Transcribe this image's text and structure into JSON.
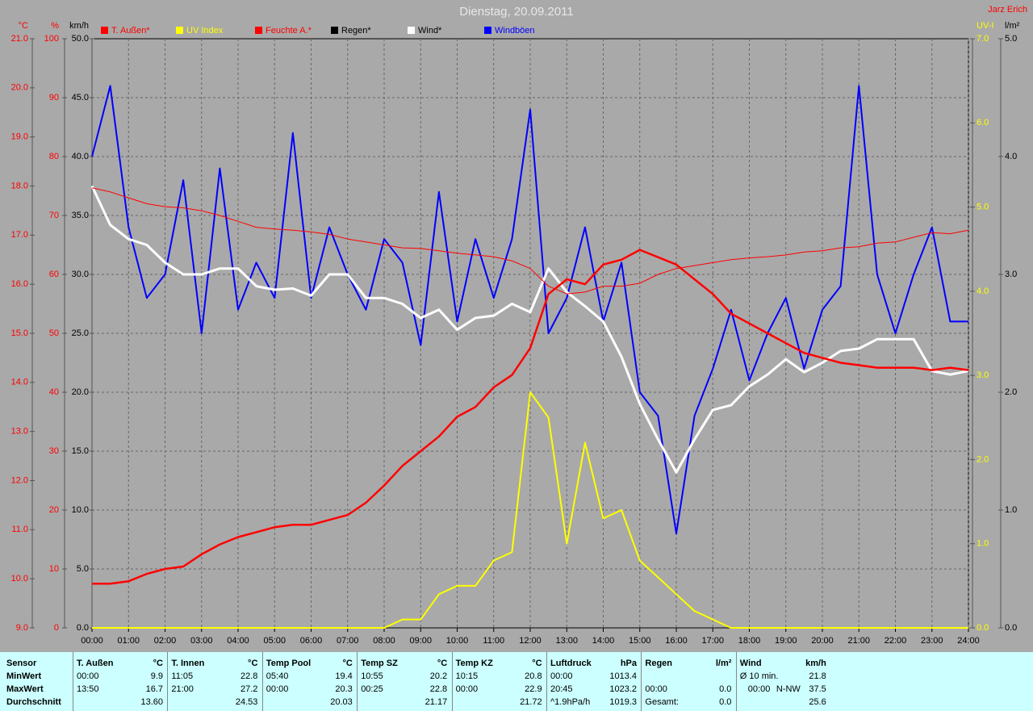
{
  "title": "Dienstag, 20.09.2011",
  "author": "Jarz Erich",
  "chart_data": {
    "type": "line",
    "x": [
      0,
      0.5,
      1,
      1.5,
      2,
      2.5,
      3,
      3.5,
      4,
      4.5,
      5,
      5.5,
      6,
      6.5,
      7,
      7.5,
      8,
      8.5,
      9,
      9.5,
      10,
      10.5,
      11,
      11.5,
      12,
      12.5,
      13,
      13.5,
      14,
      14.5,
      15,
      15.5,
      16,
      16.5,
      17,
      17.5,
      18,
      18.5,
      19,
      19.5,
      20,
      20.5,
      21,
      21.5,
      22,
      22.5,
      23,
      23.5,
      24
    ],
    "xlim": [
      0,
      24
    ],
    "xticks": [
      {
        "value": 0,
        "label": "00:00"
      },
      {
        "value": 1,
        "label": "01:00"
      },
      {
        "value": 2,
        "label": "02:00"
      },
      {
        "value": 3,
        "label": "03:00"
      },
      {
        "value": 4,
        "label": "04:00"
      },
      {
        "value": 5,
        "label": "05:00"
      },
      {
        "value": 6,
        "label": "06:00"
      },
      {
        "value": 7,
        "label": "07:00"
      },
      {
        "value": 8,
        "label": "08:00"
      },
      {
        "value": 9,
        "label": "09:00"
      },
      {
        "value": 10,
        "label": "10:00"
      },
      {
        "value": 11,
        "label": "11:00"
      },
      {
        "value": 12,
        "label": "12:00"
      },
      {
        "value": 13,
        "label": "13:00"
      },
      {
        "value": 14,
        "label": "14:00"
      },
      {
        "value": 15,
        "label": "15:00"
      },
      {
        "value": 16,
        "label": "16:00"
      },
      {
        "value": 17,
        "label": "17:00"
      },
      {
        "value": 18,
        "label": "18:00"
      },
      {
        "value": 19,
        "label": "19:00"
      },
      {
        "value": 20,
        "label": "20:00"
      },
      {
        "value": 21,
        "label": "21:00"
      },
      {
        "value": 22,
        "label": "22:00"
      },
      {
        "value": 23,
        "label": "23:00"
      },
      {
        "value": 24,
        "label": "24:00"
      }
    ],
    "grid": true,
    "axes": [
      {
        "label": "°C",
        "color": "#ff0000",
        "side": "left",
        "lim": [
          9,
          21
        ],
        "ticks": [
          {
            "value": 9,
            "label": "9.0"
          },
          {
            "value": 10,
            "label": "10.0"
          },
          {
            "value": 11,
            "label": "11.0"
          },
          {
            "value": 12,
            "label": "12.0"
          },
          {
            "value": 13,
            "label": "13.0"
          },
          {
            "value": 14,
            "label": "14.0"
          },
          {
            "value": 15,
            "label": "15.0"
          },
          {
            "value": 16,
            "label": "16.0"
          },
          {
            "value": 17,
            "label": "17.0"
          },
          {
            "value": 18,
            "label": "18.0"
          },
          {
            "value": 19,
            "label": "19.0"
          },
          {
            "value": 20,
            "label": "20.0"
          },
          {
            "value": 21,
            "label": "21.0"
          }
        ]
      },
      {
        "label": "%",
        "color": "#ff0000",
        "side": "left",
        "lim": [
          0,
          100
        ],
        "ticks": [
          0,
          10,
          20,
          30,
          40,
          50,
          60,
          70,
          80,
          90,
          100
        ]
      },
      {
        "label": "km/h",
        "color": "#000000",
        "side": "left",
        "grid": true,
        "lim": [
          0,
          50
        ],
        "ticks": [
          {
            "value": 0,
            "label": "0.0"
          },
          {
            "value": 5,
            "label": "5.0"
          },
          {
            "value": 10,
            "label": "10.0"
          },
          {
            "value": 15,
            "label": "15.0"
          },
          {
            "value": 20,
            "label": "20.0"
          },
          {
            "value": 25,
            "label": "25.0"
          },
          {
            "value": 30,
            "label": "30.0"
          },
          {
            "value": 35,
            "label": "35.0"
          },
          {
            "value": 40,
            "label": "40.0"
          },
          {
            "value": 45,
            "label": "45.0"
          },
          {
            "value": 50,
            "label": "50.0"
          }
        ]
      },
      {
        "label": "UV-I",
        "color": "#ffff00",
        "side": "right",
        "lim": [
          0,
          7
        ],
        "ticks": [
          {
            "value": 0,
            "label": "0.0"
          },
          {
            "value": 1,
            "label": "1.0"
          },
          {
            "value": 2,
            "label": "2.0"
          },
          {
            "value": 3,
            "label": "3.0"
          },
          {
            "value": 4,
            "label": "4.0"
          },
          {
            "value": 5,
            "label": "5.0"
          },
          {
            "value": 6,
            "label": "6.0"
          },
          {
            "value": 7,
            "label": "7.0"
          }
        ]
      },
      {
        "label": "l/m²",
        "color": "#000000",
        "side": "right",
        "lim": [
          0,
          5
        ],
        "ticks": [
          {
            "value": 0,
            "label": "0.0"
          },
          {
            "value": 1,
            "label": "1.0"
          },
          {
            "value": 2,
            "label": "2.0"
          },
          {
            "value": 3,
            "label": "3.0"
          },
          {
            "value": 4,
            "label": "4.0"
          },
          {
            "value": 5,
            "label": "5.0"
          }
        ]
      }
    ],
    "series": [
      {
        "name": "T. Außen*",
        "color": "#ff0000",
        "axis": 0,
        "line_width": 2.5,
        "values": [
          9.9,
          9.9,
          9.95,
          10.1,
          10.2,
          10.25,
          10.5,
          10.7,
          10.85,
          10.95,
          11.05,
          11.1,
          11.1,
          11.2,
          11.3,
          11.55,
          11.9,
          12.3,
          12.6,
          12.9,
          13.3,
          13.5,
          13.9,
          14.15,
          14.7,
          15.8,
          16.1,
          16.0,
          16.4,
          16.5,
          16.7,
          16.55,
          16.4,
          16.1,
          15.8,
          15.4,
          15.2,
          15.0,
          14.8,
          14.6,
          14.5,
          14.4,
          14.35,
          14.3,
          14.3,
          14.3,
          14.25,
          14.3,
          14.25
        ]
      },
      {
        "name": "UV Index",
        "color": "#ffff00",
        "axis": 3,
        "line_width": 2,
        "values": [
          0,
          0,
          0,
          0,
          0,
          0,
          0,
          0,
          0,
          0,
          0,
          0,
          0,
          0,
          0,
          0,
          0,
          0.1,
          0.1,
          0.4,
          0.5,
          0.5,
          0.8,
          0.9,
          2.8,
          2.5,
          1.0,
          2.2,
          1.3,
          1.4,
          0.8,
          0.6,
          0.4,
          0.2,
          0.1,
          0,
          0,
          0,
          0,
          0,
          0,
          0,
          0,
          0,
          0,
          0,
          0,
          0,
          0
        ]
      },
      {
        "name": "Feuchte A.*",
        "color": "#ff0000",
        "axis": 1,
        "line_width": 1,
        "values": [
          74.7,
          74,
          73,
          72,
          71.5,
          71.3,
          70.8,
          70,
          69,
          68,
          67.7,
          67.5,
          67.2,
          66.8,
          66,
          65.5,
          65,
          64.5,
          64.4,
          64,
          63.6,
          63.3,
          63,
          62.3,
          61,
          58,
          56.7,
          57,
          58,
          58,
          58.5,
          60,
          61,
          61.5,
          62,
          62.5,
          62.8,
          63,
          63.3,
          63.8,
          64,
          64.5,
          64.7,
          65.3,
          65.5,
          66.3,
          67.1,
          66.9,
          67.5
        ]
      },
      {
        "name": "Regen*",
        "color": "#000000",
        "axis": 4,
        "line_width": 1,
        "values": [
          0,
          0,
          0,
          0,
          0,
          0,
          0,
          0,
          0,
          0,
          0,
          0,
          0,
          0,
          0,
          0,
          0,
          0,
          0,
          0,
          0,
          0,
          0,
          0,
          0,
          0,
          0,
          0,
          0,
          0,
          0,
          0,
          0,
          0,
          0,
          0,
          0,
          0,
          0,
          0,
          0,
          0,
          0,
          0,
          0,
          0,
          0,
          0,
          0
        ]
      },
      {
        "name": "Wind*",
        "color": "#ffffff",
        "axis": 2,
        "line_width": 3,
        "values": [
          37.5,
          34.2,
          33.0,
          32.5,
          31.0,
          30.0,
          30.0,
          30.5,
          30.5,
          29,
          28.7,
          28.8,
          28.2,
          30,
          30,
          28,
          28,
          27.5,
          26.3,
          27,
          25.3,
          26.3,
          26.5,
          27.5,
          26.8,
          30.5,
          28.5,
          27.3,
          26,
          23,
          19,
          16,
          13.2,
          16,
          18.5,
          18.9,
          20.5,
          21.5,
          22.8,
          21.7,
          22.5,
          23.5,
          23.7,
          24.5,
          24.5,
          24.5,
          21.8,
          21.5,
          21.8
        ]
      },
      {
        "name": "Windböen",
        "color": "#0000ff",
        "axis": 2,
        "line_width": 2,
        "values": [
          40,
          46,
          34,
          28,
          30,
          38,
          25,
          39,
          27,
          31,
          28,
          42,
          28,
          34,
          30,
          27,
          33,
          31,
          24,
          37,
          26,
          33,
          28,
          33,
          44,
          25,
          28,
          34,
          26,
          31,
          20,
          18,
          8,
          18,
          22,
          27,
          21,
          25,
          28,
          22,
          27,
          29,
          46,
          30,
          25,
          30,
          34,
          26,
          26
        ]
      }
    ]
  },
  "table": {
    "row_labels": [
      "Sensor",
      "MinWert",
      "MaxWert",
      "Durchschnitt"
    ],
    "columns": [
      {
        "name": "T. Außen",
        "unit": "°C",
        "rows": [
          [
            "00:00",
            "9.9"
          ],
          [
            "13:50",
            "16.7"
          ],
          [
            null,
            "13.60"
          ]
        ]
      },
      {
        "name": "T. Innen",
        "unit": "°C",
        "rows": [
          [
            "11:05",
            "22.8"
          ],
          [
            "21:00",
            "27.2"
          ],
          [
            null,
            "24.53"
          ]
        ]
      },
      {
        "name": "Temp Pool",
        "unit": "°C",
        "rows": [
          [
            "05:40",
            "19.4"
          ],
          [
            "00:00",
            "20.3"
          ],
          [
            null,
            "20.03"
          ]
        ]
      },
      {
        "name": "Temp SZ",
        "unit": "°C",
        "rows": [
          [
            "10:55",
            "20.2"
          ],
          [
            "00:25",
            "22.8"
          ],
          [
            null,
            "21.17"
          ]
        ]
      },
      {
        "name": "Temp KZ",
        "unit": "°C",
        "rows": [
          [
            "10:15",
            "20.8"
          ],
          [
            "00:00",
            "22.9"
          ],
          [
            null,
            "21.72"
          ]
        ]
      },
      {
        "name": "Luftdruck",
        "unit": "hPa",
        "rows": [
          [
            "00:00",
            "1013.4"
          ],
          [
            "20:45",
            "1023.2"
          ],
          [
            "^1.9hPa/h",
            "1019.3"
          ]
        ]
      },
      {
        "name": "Regen",
        "unit": "l/m²",
        "rows": [
          [
            null,
            null
          ],
          [
            "00:00",
            "0.0"
          ],
          [
            "Gesamt:",
            "0.0"
          ]
        ]
      },
      {
        "name": "Wind",
        "unit": "km/h",
        "rows": [
          [
            "Ø 10 min.",
            "21.8"
          ],
          [
            "00:00",
            "N-NW",
            "37.5"
          ],
          [
            null,
            "25.6"
          ]
        ]
      }
    ]
  }
}
